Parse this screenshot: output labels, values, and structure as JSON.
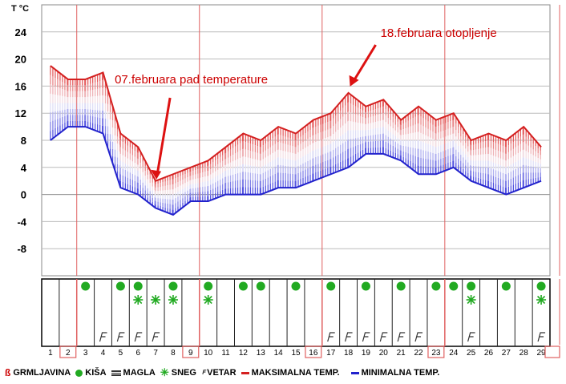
{
  "chart_data": {
    "type": "area",
    "y_unit_label": "T °C",
    "y_ticks": [
      24,
      20,
      16,
      12,
      8,
      4,
      0,
      -4,
      -8
    ],
    "ylim": [
      -12,
      28
    ],
    "days": [
      "1",
      "2",
      "3",
      "4",
      "5",
      "6",
      "7",
      "8",
      "9",
      "10",
      "11",
      "12",
      "13",
      "14",
      "15",
      "16",
      "17",
      "18",
      "19",
      "20",
      "21",
      "22",
      "23",
      "24",
      "25",
      "26",
      "27",
      "28",
      "29"
    ],
    "series": [
      {
        "name": "MAKSIMALNA TEMP.",
        "color": "#d42020",
        "values": [
          19,
          17,
          17,
          18,
          9,
          7,
          2,
          3,
          4,
          5,
          7,
          9,
          8,
          10,
          9,
          11,
          12,
          15,
          13,
          14,
          11,
          13,
          11,
          12,
          8,
          9,
          8,
          10,
          7
        ]
      },
      {
        "name": "MINIMALNA TEMP.",
        "color": "#2222cc",
        "values": [
          8,
          10,
          10,
          9,
          1,
          0,
          -2,
          -3,
          -1,
          -1,
          0,
          0,
          0,
          1,
          1,
          2,
          3,
          4,
          6,
          6,
          5,
          3,
          3,
          4,
          2,
          1,
          0,
          1,
          2
        ]
      }
    ],
    "highlighted_days": [
      2,
      9,
      16,
      23
    ],
    "weather": {
      "rain_days": [
        3,
        5,
        6,
        8,
        10,
        12,
        13,
        15,
        17,
        19,
        21,
        23,
        24,
        25,
        27,
        29
      ],
      "snow_days": [
        6,
        7,
        8,
        10,
        25,
        29
      ],
      "wind_days": [
        4,
        5,
        6,
        7,
        17,
        18,
        19,
        20,
        21,
        22,
        25,
        29
      ]
    },
    "annotations": [
      {
        "text": "07.februara pad temperature",
        "day": 7,
        "value": 2
      },
      {
        "text": "18.februara otopljenje",
        "day": 18,
        "value": 15
      }
    ]
  },
  "legend": [
    {
      "icon": "thunder-icon",
      "label": "GRMLJAVINA"
    },
    {
      "icon": "rain-icon",
      "label": "KIŠA"
    },
    {
      "icon": "fog-icon",
      "label": "MAGLA"
    },
    {
      "icon": "snow-icon",
      "label": "SNEG"
    },
    {
      "icon": "wind-icon",
      "label": "VETAR"
    },
    {
      "icon": "max-temp-icon",
      "label": "MAKSIMALNA TEMP."
    },
    {
      "icon": "min-temp-icon",
      "label": "MINIMALNA TEMP."
    }
  ],
  "colors": {
    "max": "#d42020",
    "min": "#2222cc",
    "rain": "#22aa22",
    "snow": "#22aa22",
    "grid": "#e06060"
  }
}
